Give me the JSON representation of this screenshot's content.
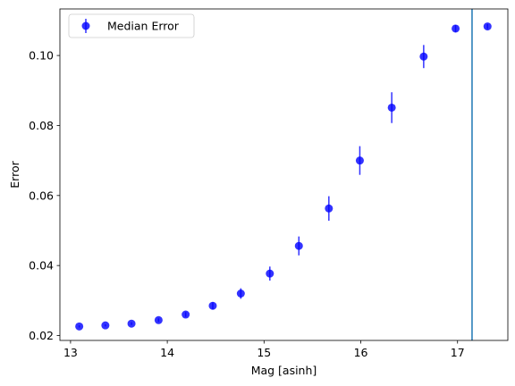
{
  "chart_data": {
    "type": "scatter",
    "xlabel": "Mag [asinh]",
    "ylabel": "Error",
    "xlim": [
      12.89,
      17.52
    ],
    "ylim": [
      0.0186,
      0.1133
    ],
    "xticks": [
      13,
      14,
      15,
      16,
      17
    ],
    "xtick_labels": [
      "13",
      "14",
      "15",
      "16",
      "17"
    ],
    "yticks": [
      0.02,
      0.04,
      0.06,
      0.08,
      0.1
    ],
    "ytick_labels": [
      "0.02",
      "0.04",
      "0.06",
      "0.08",
      "0.10"
    ],
    "grid": false,
    "legend_position": "top-left",
    "series": [
      {
        "name": "Median Error",
        "color": "#0000ff",
        "marker": "circle",
        "error_bars": true,
        "x": [
          13.09,
          13.36,
          13.63,
          13.91,
          14.19,
          14.47,
          14.76,
          15.06,
          15.36,
          15.67,
          15.99,
          16.32,
          16.65,
          16.98,
          17.31
        ],
        "y": [
          0.0226,
          0.0229,
          0.0234,
          0.0244,
          0.026,
          0.0285,
          0.032,
          0.0377,
          0.0456,
          0.0563,
          0.07,
          0.0851,
          0.0997,
          0.1077,
          0.1083
        ],
        "yerr": [
          0.0003,
          0.0003,
          0.0004,
          0.0005,
          0.0007,
          0.001,
          0.0015,
          0.002,
          0.0027,
          0.0035,
          0.0041,
          0.0044,
          0.0033,
          0.001,
          0.0007
        ]
      }
    ],
    "vertical_lines": [
      {
        "x": 17.15,
        "color": "#1f77b4"
      }
    ]
  }
}
